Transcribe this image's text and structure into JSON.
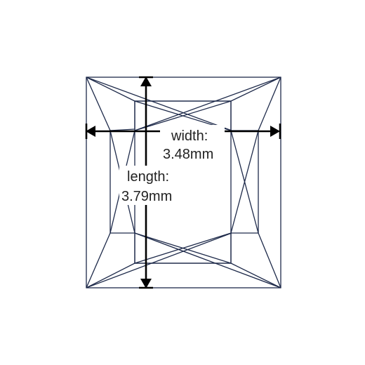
{
  "diagram": {
    "width_label": "width:",
    "width_value": "3.48mm",
    "length_label": "length:",
    "length_value": "3.79mm",
    "outline_color": "#1e2a4a",
    "arrow_color": "#000000",
    "text_color": "#222222"
  }
}
